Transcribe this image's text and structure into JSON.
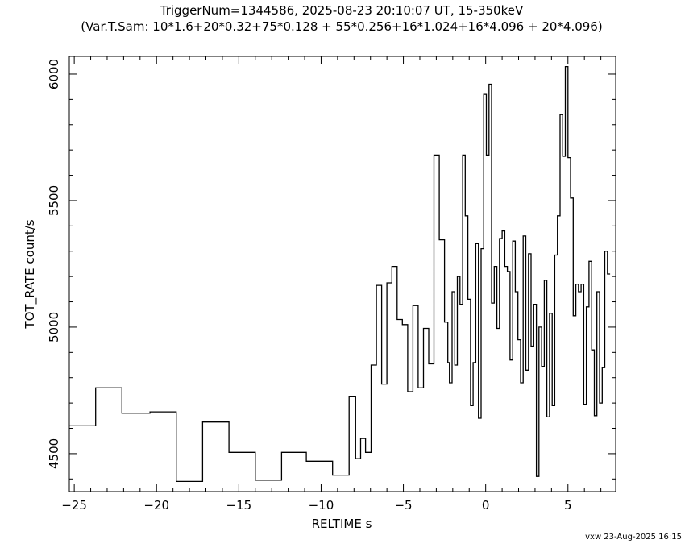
{
  "chart_data": {
    "type": "line",
    "step": true,
    "title": "TriggerNum=1344586, 2025-08-23 20:10:07 UT, 15-350keV",
    "subtitle": "(Var.T.Sam: 10*1.6+20*0.32+75*0.128  +  55*0.256+16*1.024+16*4.096  +  20*4.096)",
    "xlabel": "RELTIME  s",
    "ylabel": "TOT_RATE  count/s",
    "xlim": [
      -25.3,
      7.9
    ],
    "ylim": [
      4350,
      6070
    ],
    "xticks": [
      -25,
      -20,
      -15,
      -10,
      -5,
      0,
      5
    ],
    "xticklabels": [
      "−25",
      "−20",
      "−15",
      "−10",
      "−5",
      "0",
      "5"
    ],
    "yticks": [
      4500,
      5000,
      5500,
      6000
    ],
    "yticklabels": [
      "4500",
      "5000",
      "5500",
      "6000"
    ],
    "grid": false,
    "footer": "vxw 23-Aug-2025 16:15",
    "series": [
      {
        "color": "#000000",
        "x": [
          -25.3,
          -23.7,
          -22.1,
          -20.4,
          -18.8,
          -17.2,
          -15.6,
          -14.0,
          -12.4,
          -10.9,
          -9.3,
          -8.3,
          -7.9,
          -7.6,
          -7.3,
          -6.96,
          -6.64,
          -6.32,
          -6.0,
          -5.7,
          -5.38,
          -5.06,
          -4.74,
          -4.42,
          -4.1,
          -3.78,
          -3.46,
          -3.14,
          -2.82,
          -2.5,
          -2.3,
          -2.2,
          -2.04,
          -1.88,
          -1.72,
          -1.56,
          -1.4,
          -1.24,
          -1.08,
          -0.92,
          -0.76,
          -0.6,
          -0.44,
          -0.28,
          -0.12,
          0.04,
          0.2,
          0.36,
          0.52,
          0.68,
          0.84,
          1.0,
          1.16,
          1.32,
          1.48,
          1.64,
          1.8,
          1.96,
          2.12,
          2.28,
          2.44,
          2.6,
          2.76,
          2.92,
          3.08,
          3.24,
          3.4,
          3.56,
          3.72,
          3.88,
          4.04,
          4.2,
          4.36,
          4.52,
          4.68,
          4.84,
          5.0,
          5.16,
          5.32,
          5.48,
          5.64,
          5.8,
          5.96,
          6.12,
          6.28,
          6.44,
          6.6,
          6.76,
          6.92,
          7.08,
          7.24,
          7.4
        ],
        "y": [
          4610,
          4760,
          4660,
          4665,
          4390,
          4625,
          4505,
          4395,
          4505,
          4470,
          4415,
          4725,
          4480,
          4560,
          4505,
          4850,
          5165,
          4775,
          5175,
          5240,
          5030,
          5010,
          4745,
          5085,
          4760,
          4995,
          4855,
          5680,
          5345,
          5020,
          4860,
          4780,
          5140,
          4850,
          5200,
          5090,
          5680,
          5440,
          5110,
          4690,
          4860,
          5330,
          4640,
          5310,
          5920,
          5680,
          5960,
          5095,
          5240,
          4995,
          5350,
          5380,
          5240,
          5220,
          4870,
          5340,
          5140,
          4950,
          4780,
          5360,
          4830,
          5290,
          4925,
          5090,
          4410,
          5000,
          4845,
          5185,
          4645,
          5055,
          4690,
          5285,
          5440,
          5840,
          5675,
          6030,
          5670,
          5510,
          5045,
          5170,
          5140,
          5170,
          4695,
          5080,
          5260,
          4910,
          4650,
          5140,
          4700,
          4840,
          5300,
          5210
        ]
      }
    ]
  }
}
